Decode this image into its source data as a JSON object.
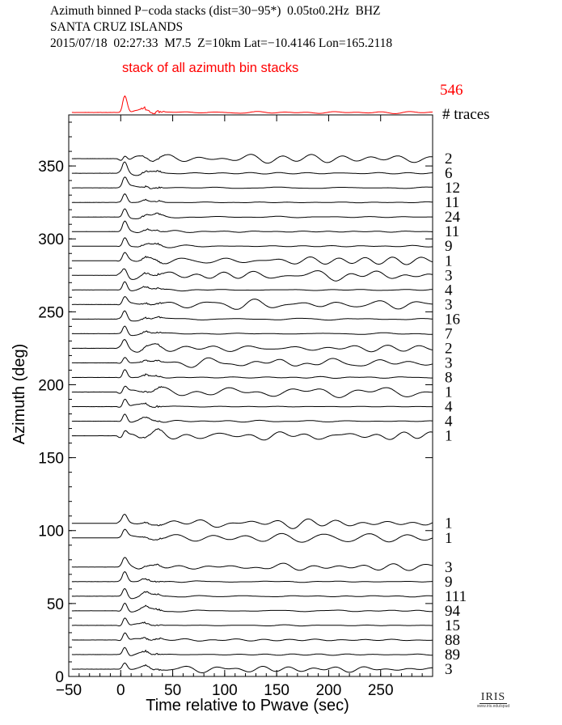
{
  "header": {
    "line1": "Azimuth binned P−coda stacks (dist=30−95*)  0.05to0.2Hz  BHZ",
    "line2": "SANTA CRUZ ISLANDS",
    "line3": "2015/07/18  02:27:33  M7.5  Z=10km Lat=−10.4146 Lon=165.2118"
  },
  "logo": {
    "text": "IRIS",
    "subtext": "www.iris.edu/spud"
  },
  "chart_data": {
    "type": "line",
    "title": "",
    "xlabel": "Time relative to Pwave (sec)",
    "ylabel": "Azimuth (deg)",
    "xlim": [
      -50,
      300
    ],
    "ylim": [
      0,
      385
    ],
    "xticks": [
      -50,
      0,
      50,
      100,
      150,
      200,
      250
    ],
    "yticks": [
      0,
      50,
      100,
      150,
      200,
      250,
      300,
      350
    ],
    "top_panel": {
      "label": "stack of all azimuth bin stacks",
      "trace_count": 546,
      "color": "#ff0000"
    },
    "count_header": "# traces",
    "trace_color": "#000000",
    "series": [
      {
        "azimuth": 360,
        "traces": 2
      },
      {
        "azimuth": 350,
        "traces": 6
      },
      {
        "azimuth": 340,
        "traces": 12
      },
      {
        "azimuth": 330,
        "traces": 11
      },
      {
        "azimuth": 320,
        "traces": 24
      },
      {
        "azimuth": 310,
        "traces": 11
      },
      {
        "azimuth": 300,
        "traces": 9
      },
      {
        "azimuth": 290,
        "traces": 1
      },
      {
        "azimuth": 280,
        "traces": 3
      },
      {
        "azimuth": 270,
        "traces": 4
      },
      {
        "azimuth": 260,
        "traces": 3
      },
      {
        "azimuth": 250,
        "traces": 16
      },
      {
        "azimuth": 240,
        "traces": 7
      },
      {
        "azimuth": 230,
        "traces": 2
      },
      {
        "azimuth": 220,
        "traces": 3
      },
      {
        "azimuth": 210,
        "traces": 8
      },
      {
        "azimuth": 200,
        "traces": 1
      },
      {
        "azimuth": 190,
        "traces": 4
      },
      {
        "azimuth": 180,
        "traces": 4
      },
      {
        "azimuth": 170,
        "traces": 1
      },
      {
        "azimuth": 110,
        "traces": 1
      },
      {
        "azimuth": 100,
        "traces": 1
      },
      {
        "azimuth": 80,
        "traces": 3
      },
      {
        "azimuth": 70,
        "traces": 9
      },
      {
        "azimuth": 60,
        "traces": 111
      },
      {
        "azimuth": 50,
        "traces": 94
      },
      {
        "azimuth": 40,
        "traces": 15
      },
      {
        "azimuth": 30,
        "traces": 88
      },
      {
        "azimuth": 20,
        "traces": 89
      },
      {
        "azimuth": 10,
        "traces": 3
      }
    ]
  }
}
